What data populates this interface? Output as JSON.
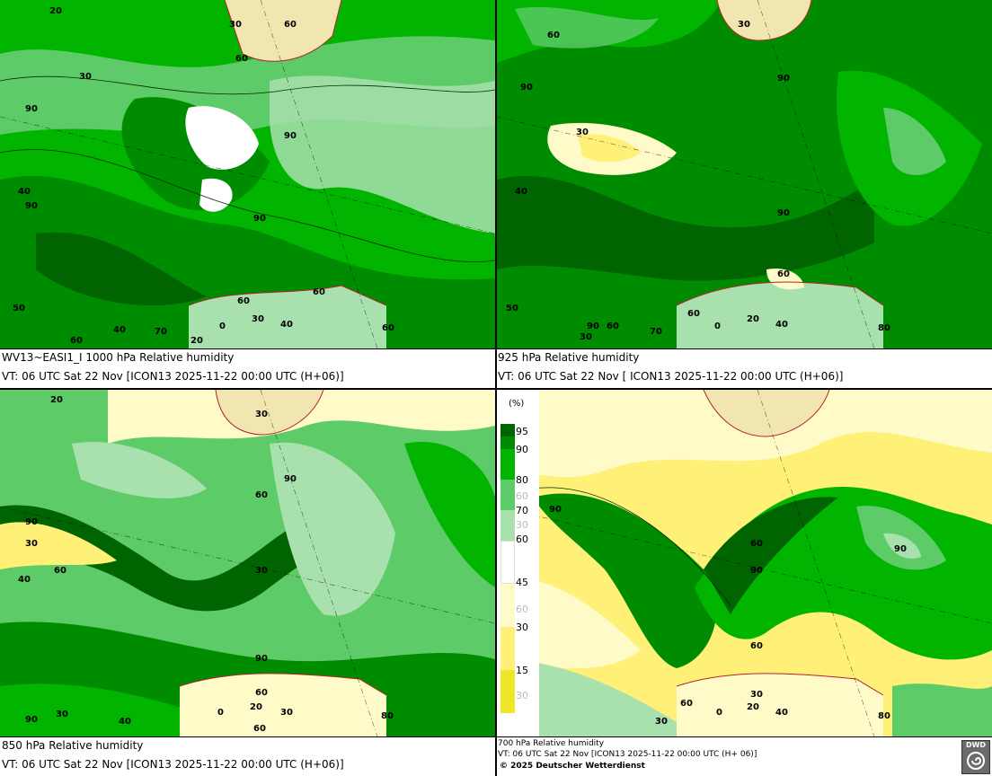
{
  "panels": [
    {
      "caption_line1": "WV13~EASI1_I 1000 hPa Relative humidity",
      "caption_line2": "VT: 06 UTC Sat  22 Nov [ICON13 2025-11-22 00:00 UTC  (H+06)]",
      "contour_labels": [
        "20",
        "30",
        "60",
        "30",
        "60",
        "90",
        "90",
        "40",
        "90",
        "90",
        "60",
        "60",
        "0",
        "70",
        "20",
        "60",
        "30",
        "40",
        "50",
        "60",
        "40"
      ]
    },
    {
      "caption_line1": "925 hPa Relative humidity",
      "caption_line2": "VT: 06 UTC Sat  22 Nov [ ICON13 2025-11-22 00:00 UTC  (H+06)]",
      "contour_labels": [
        "60",
        "30",
        "90",
        "90",
        "30",
        "40",
        "90",
        "60",
        "60",
        "50",
        "90",
        "30",
        "0",
        "20",
        "40",
        "70",
        "60",
        "80"
      ]
    },
    {
      "caption_line1": "850 hPa  Relative humidity",
      "caption_line2": "VT: 06 UTC Sat  22 Nov [ICON13 2025-11-22 00:00 UTC  (H+06)]",
      "contour_labels": [
        "20",
        "30",
        "90",
        "60",
        "90",
        "30",
        "60",
        "40",
        "30",
        "90",
        "60",
        "90",
        "30",
        "0",
        "20",
        "60",
        "30",
        "80",
        "40"
      ]
    },
    {
      "caption_line1": "700 hPa Relative humidity",
      "caption_line2": "VT: 06 UTC Sat  22 Nov [ICON13 2025-11-22 00:00 UTC  (H+ 06)]",
      "caption_line3": "© 2025 Deutscher Wetterdienst",
      "contour_labels": [
        "90",
        "60",
        "90",
        "90",
        "60",
        "30",
        "0",
        "20",
        "40",
        "30",
        "60",
        "80"
      ]
    }
  ],
  "legend": {
    "unit": "(%)",
    "labels": [
      "95",
      "90",
      "80",
      "70",
      "60",
      "45",
      "30",
      "15"
    ],
    "faint_labels": [
      "60",
      "30",
      "60",
      "30"
    ]
  },
  "colors": {
    "rh_95": "#006400",
    "rh_90": "#008C00",
    "rh_80": "#00B400",
    "rh_70": "#5ECB69",
    "rh_60": "#A8E0AE",
    "rh_45": "#FFFFFF",
    "rh_30": "#FFFBC8",
    "rh_15": "#FFF078",
    "rh_0": "#F0E628",
    "land": "#F2E6B0",
    "coast": "#B2222C"
  },
  "logo": {
    "text": "DWD",
    "icon": "dwd-spiral-icon"
  }
}
